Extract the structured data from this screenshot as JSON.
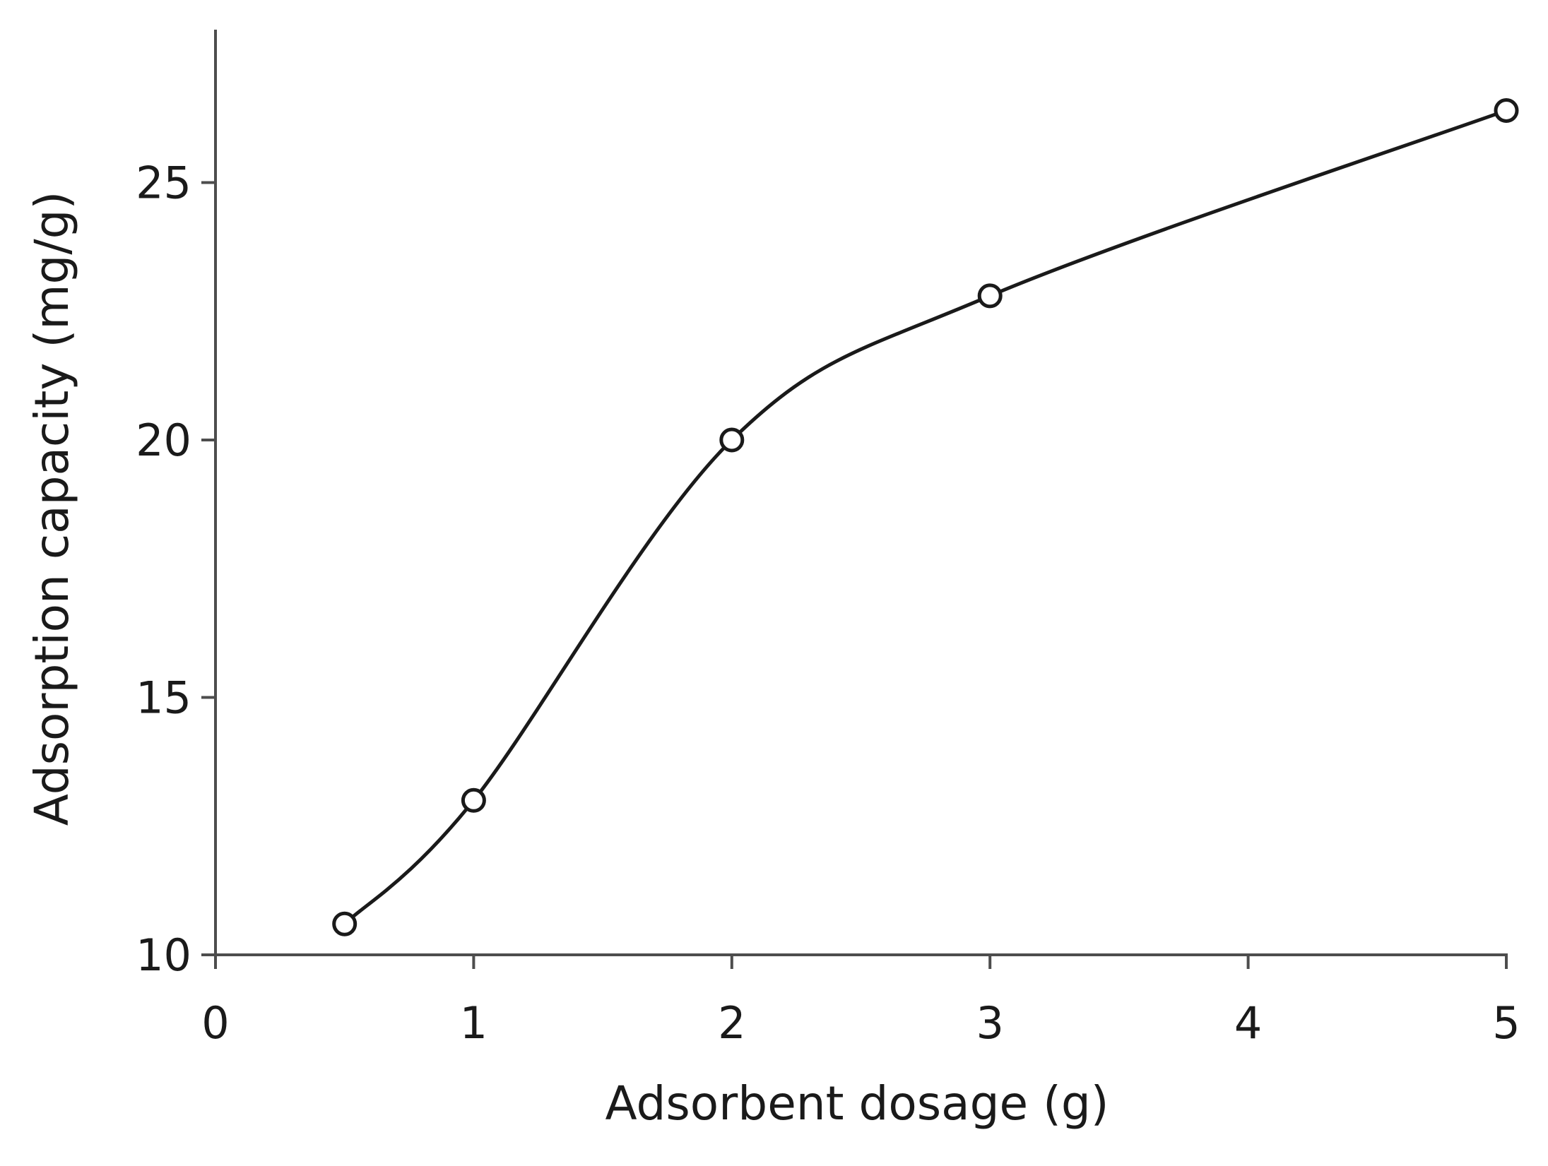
{
  "chart_data": {
    "type": "line",
    "title": "",
    "xlabel": "Adsorbent dosage (g)",
    "ylabel": "Adsorption capacity (mg/g)",
    "xlim": [
      0,
      5
    ],
    "ylim": [
      10,
      28
    ],
    "x_ticks": [
      0,
      1,
      2,
      3,
      4,
      5
    ],
    "y_ticks": [
      10,
      15,
      20,
      25
    ],
    "grid": false,
    "legend": "none",
    "series": [
      {
        "x": [
          0.5,
          1,
          2,
          3,
          5
        ],
        "y": [
          10.6,
          13.0,
          20.0,
          22.8,
          26.4
        ],
        "marker": "open-circle",
        "line": "smooth"
      }
    ],
    "colors": {
      "line": "#1a1a1a",
      "axis": "#4d4d4d",
      "marker_fill": "#ffffff"
    }
  }
}
